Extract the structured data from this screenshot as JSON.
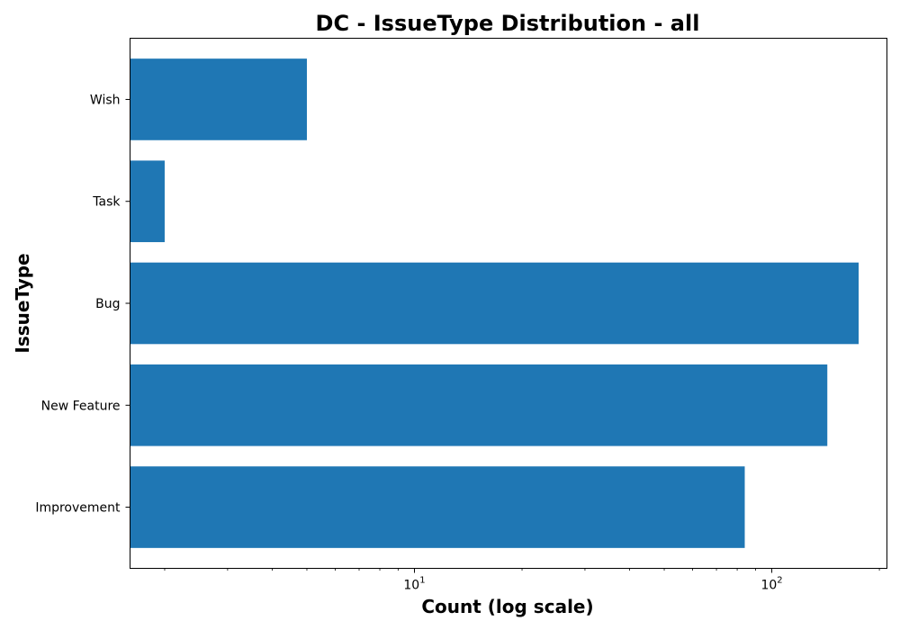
{
  "chart_data": {
    "type": "bar",
    "orientation": "horizontal",
    "title": "DC - IssueType Distribution - all",
    "xlabel": "Count (log scale)",
    "ylabel": "IssueType",
    "xscale": "log",
    "xlim": [
      1.6,
      210
    ],
    "categories": [
      "Improvement",
      "New Feature",
      "Bug",
      "Task",
      "Wish"
    ],
    "values": [
      84,
      143,
      175,
      2,
      5
    ],
    "x_ticks": [
      {
        "value": 10,
        "base": "10",
        "exp": "1"
      },
      {
        "value": 100,
        "base": "10",
        "exp": "2"
      }
    ],
    "bar_color": "#1f77b4",
    "grid": false,
    "legend": "none"
  }
}
